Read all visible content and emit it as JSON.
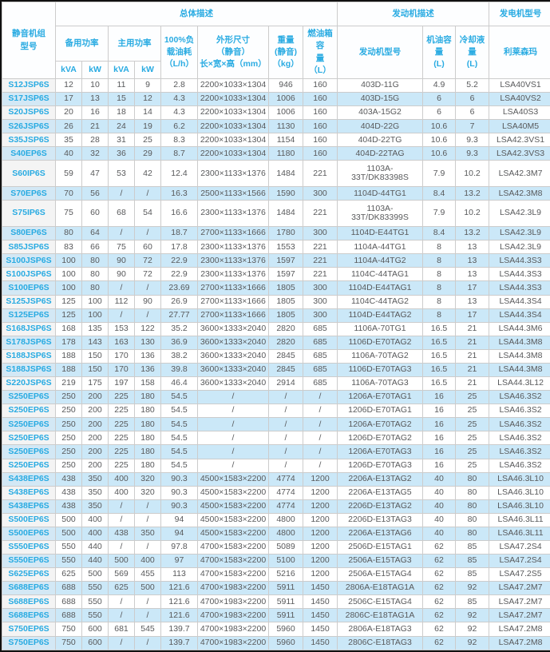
{
  "header": {
    "model_col": "静音机组\n型号",
    "group_overall": "总体描述",
    "group_engine": "发动机描述",
    "group_generator": "发电机型号",
    "standby_power": "备用功率",
    "prime_power": "主用功率",
    "kva": "kVA",
    "kw": "kW",
    "fuel_consumption": "100%负\n载油耗\n（L/h）",
    "dimensions": "外形尺寸\n（静音）\n长×宽×高（mm）",
    "weight": "重量\n(静音)\n（kg）",
    "fuel_tank": "燃油箱容\n量\n（L）",
    "engine_model": "发动机型号",
    "oil_capacity": "机油容量\n(L)",
    "coolant_capacity": "冷却液量\n(L)",
    "leroy_somer": "利莱森玛"
  },
  "colors": {
    "header_text": "#29abe2",
    "model_link_text": "#29abe2",
    "row_alt_blue": "#cbe8f8",
    "model_col_gray": "#f4f4f4",
    "data_text": "#58595b",
    "grid_line": "#cccccc",
    "outer_border": "#111111"
  },
  "columns": [
    "model",
    "standby_kva",
    "standby_kw",
    "prime_kva",
    "prime_kw",
    "fuel_consumption",
    "dimensions",
    "weight",
    "fuel_tank",
    "engine_model",
    "oil_capacity",
    "coolant_capacity",
    "generator_model"
  ],
  "rows": [
    [
      "S12JSP6S",
      "12",
      "10",
      "11",
      "9",
      "2.8",
      "2200×1033×1304",
      "946",
      "160",
      "403D-11G",
      "4.9",
      "5.2",
      "LSA40VS1"
    ],
    [
      "S17JSP6S",
      "17",
      "13",
      "15",
      "12",
      "4.3",
      "2200×1033×1304",
      "1006",
      "160",
      "403D-15G",
      "6",
      "6",
      "LSA40VS2"
    ],
    [
      "S20JSP6S",
      "20",
      "16",
      "18",
      "14",
      "4.3",
      "2200×1033×1304",
      "1006",
      "160",
      "403A-15G2",
      "6",
      "6",
      "LSA40S3"
    ],
    [
      "S26JSP6S",
      "26",
      "21",
      "24",
      "19",
      "6.2",
      "2200×1033×1304",
      "1130",
      "160",
      "404D-22G",
      "10.6",
      "7",
      "LSA40M5"
    ],
    [
      "S35JSP6S",
      "35",
      "28",
      "31",
      "25",
      "8.3",
      "2200×1033×1304",
      "1154",
      "160",
      "404D-22TG",
      "10.6",
      "9.3",
      "LSA42.3VS1"
    ],
    [
      "S40EP6S",
      "40",
      "32",
      "36",
      "29",
      "8.7",
      "2200×1033×1304",
      "1180",
      "160",
      "404D-22TAG",
      "10.6",
      "9.3",
      "LSA42.3VS3"
    ],
    [
      "S60IP6S",
      "59",
      "47",
      "53",
      "42",
      "12.4",
      "2300×1133×1376",
      "1484",
      "221",
      "1103A-33T/DK83398S",
      "7.9",
      "10.2",
      "LSA42.3M7"
    ],
    [
      "S70EP6S",
      "70",
      "56",
      "/",
      "/",
      "16.3",
      "2500×1133×1566",
      "1590",
      "300",
      "1104D-44TG1",
      "8.4",
      "13.2",
      "LSA42.3M8"
    ],
    [
      "S75IP6S",
      "75",
      "60",
      "68",
      "54",
      "16.6",
      "2300×1133×1376",
      "1484",
      "221",
      "1103A-33T/DK83399S",
      "7.9",
      "10.2",
      "LSA42.3L9"
    ],
    [
      "S80EP6S",
      "80",
      "64",
      "/",
      "/",
      "18.7",
      "2700×1133×1666",
      "1780",
      "300",
      "1104D-E44TG1",
      "8.4",
      "13.2",
      "LSA42.3L9"
    ],
    [
      "S85JSP6S",
      "83",
      "66",
      "75",
      "60",
      "17.8",
      "2300×1133×1376",
      "1553",
      "221",
      "1104A-44TG1",
      "8",
      "13",
      "LSA42.3L9"
    ],
    [
      "S100JSP6S",
      "100",
      "80",
      "90",
      "72",
      "22.9",
      "2300×1133×1376",
      "1597",
      "221",
      "1104A-44TG2",
      "8",
      "13",
      "LSA44.3S3"
    ],
    [
      "S100JSP6S",
      "100",
      "80",
      "90",
      "72",
      "22.9",
      "2300×1133×1376",
      "1597",
      "221",
      "1104C-44TAG1",
      "8",
      "13",
      "LSA44.3S3"
    ],
    [
      "S100EP6S",
      "100",
      "80",
      "/",
      "/",
      "23.69",
      "2700×1133×1666",
      "1805",
      "300",
      "1104D-E44TAG1",
      "8",
      "17",
      "LSA44.3S3"
    ],
    [
      "S125JSP6S",
      "125",
      "100",
      "112",
      "90",
      "26.9",
      "2700×1133×1666",
      "1805",
      "300",
      "1104C-44TAG2",
      "8",
      "13",
      "LSA44.3S4"
    ],
    [
      "S125EP6S",
      "125",
      "100",
      "/",
      "/",
      "27.77",
      "2700×1133×1666",
      "1805",
      "300",
      "1104D-E44TAG2",
      "8",
      "17",
      "LSA44.3S4"
    ],
    [
      "S168JSP6S",
      "168",
      "135",
      "153",
      "122",
      "35.2",
      "3600×1333×2040",
      "2820",
      "685",
      "1106A-70TG1",
      "16.5",
      "21",
      "LSA44.3M6"
    ],
    [
      "S178JSP6S",
      "178",
      "143",
      "163",
      "130",
      "36.9",
      "3600×1333×2040",
      "2820",
      "685",
      "1106D-E70TAG2",
      "16.5",
      "21",
      "LSA44.3M8"
    ],
    [
      "S188JSP6S",
      "188",
      "150",
      "170",
      "136",
      "38.2",
      "3600×1333×2040",
      "2845",
      "685",
      "1106A-70TAG2",
      "16.5",
      "21",
      "LSA44.3M8"
    ],
    [
      "S188JSP6S",
      "188",
      "150",
      "170",
      "136",
      "39.8",
      "3600×1333×2040",
      "2845",
      "685",
      "1106D-E70TAG3",
      "16.5",
      "21",
      "LSA44.3M8"
    ],
    [
      "S220JSP6S",
      "219",
      "175",
      "197",
      "158",
      "46.4",
      "3600×1333×2040",
      "2914",
      "685",
      "1106A-70TAG3",
      "16.5",
      "21",
      "LSA44.3L12"
    ],
    [
      "S250EP6S",
      "250",
      "200",
      "225",
      "180",
      "54.5",
      "/",
      "/",
      "/",
      "1206A-E70TAG1",
      "16",
      "25",
      "LSA46.3S2"
    ],
    [
      "S250EP6S",
      "250",
      "200",
      "225",
      "180",
      "54.5",
      "/",
      "/",
      "/",
      "1206D-E70TAG1",
      "16",
      "25",
      "LSA46.3S2"
    ],
    [
      "S250EP6S",
      "250",
      "200",
      "225",
      "180",
      "54.5",
      "/",
      "/",
      "/",
      "1206A-E70TAG2",
      "16",
      "25",
      "LSA46.3S2"
    ],
    [
      "S250EP6S",
      "250",
      "200",
      "225",
      "180",
      "54.5",
      "/",
      "/",
      "/",
      "1206D-E70TAG2",
      "16",
      "25",
      "LSA46.3S2"
    ],
    [
      "S250EP6S",
      "250",
      "200",
      "225",
      "180",
      "54.5",
      "/",
      "/",
      "/",
      "1206A-E70TAG3",
      "16",
      "25",
      "LSA46.3S2"
    ],
    [
      "S250EP6S",
      "250",
      "200",
      "225",
      "180",
      "54.5",
      "/",
      "/",
      "/",
      "1206D-E70TAG3",
      "16",
      "25",
      "LSA46.3S2"
    ],
    [
      "S438EP6S",
      "438",
      "350",
      "400",
      "320",
      "90.3",
      "4500×1583×2200",
      "4774",
      "1200",
      "2206A-E13TAG2",
      "40",
      "80",
      "LSA46.3L10"
    ],
    [
      "S438EP6S",
      "438",
      "350",
      "400",
      "320",
      "90.3",
      "4500×1583×2200",
      "4774",
      "1200",
      "2206A-E13TAG5",
      "40",
      "80",
      "LSA46.3L10"
    ],
    [
      "S438EP6S",
      "438",
      "350",
      "/",
      "/",
      "90.3",
      "4500×1583×2200",
      "4774",
      "1200",
      "2206D-E13TAG2",
      "40",
      "80",
      "LSA46.3L10"
    ],
    [
      "S500EP6S",
      "500",
      "400",
      "/",
      "/",
      "94",
      "4500×1583×2200",
      "4800",
      "1200",
      "2206D-E13TAG3",
      "40",
      "80",
      "LSA46.3L11"
    ],
    [
      "S500EP6S",
      "500",
      "400",
      "438",
      "350",
      "94",
      "4500×1583×2200",
      "4800",
      "1200",
      "2206A-E13TAG6",
      "40",
      "80",
      "LSA46.3L11"
    ],
    [
      "S550EP6S",
      "550",
      "440",
      "/",
      "/",
      "97.8",
      "4700×1583×2200",
      "5089",
      "1200",
      "2506D-E15TAG1",
      "62",
      "85",
      "LSA47.2S4"
    ],
    [
      "S550EP6S",
      "550",
      "440",
      "500",
      "400",
      "97",
      "4700×1583×2200",
      "5100",
      "1200",
      "2506A-E15TAG3",
      "62",
      "85",
      "LSA47.2S4"
    ],
    [
      "S625EP6S",
      "625",
      "500",
      "569",
      "455",
      "113",
      "4700×1583×2200",
      "5216",
      "1200",
      "2506A-E15TAG4",
      "62",
      "85",
      "LSA47.2S5"
    ],
    [
      "S688EP6S",
      "688",
      "550",
      "625",
      "500",
      "121.6",
      "4700×1983×2200",
      "5911",
      "1450",
      "2806A-E18TAG1A",
      "62",
      "92",
      "LSA47.2M7"
    ],
    [
      "S688EP6S",
      "688",
      "550",
      "/",
      "/",
      "121.6",
      "4700×1983×2200",
      "5911",
      "1450",
      "2506C-E15TAG4",
      "62",
      "85",
      "LSA47.2M7"
    ],
    [
      "S688EP6S",
      "688",
      "550",
      "/",
      "/",
      "121.6",
      "4700×1983×2200",
      "5911",
      "1450",
      "2806C-E18TAG1A",
      "62",
      "92",
      "LSA47.2M7"
    ],
    [
      "S750EP6S",
      "750",
      "600",
      "681",
      "545",
      "139.7",
      "4700×1983×2200",
      "5960",
      "1450",
      "2806A-E18TAG3",
      "62",
      "92",
      "LSA47.2M8"
    ],
    [
      "S750EP6S",
      "750",
      "600",
      "/",
      "/",
      "139.7",
      "4700×1983×2200",
      "5960",
      "1450",
      "2806C-E18TAG3",
      "62",
      "92",
      "LSA47.2M8"
    ]
  ]
}
